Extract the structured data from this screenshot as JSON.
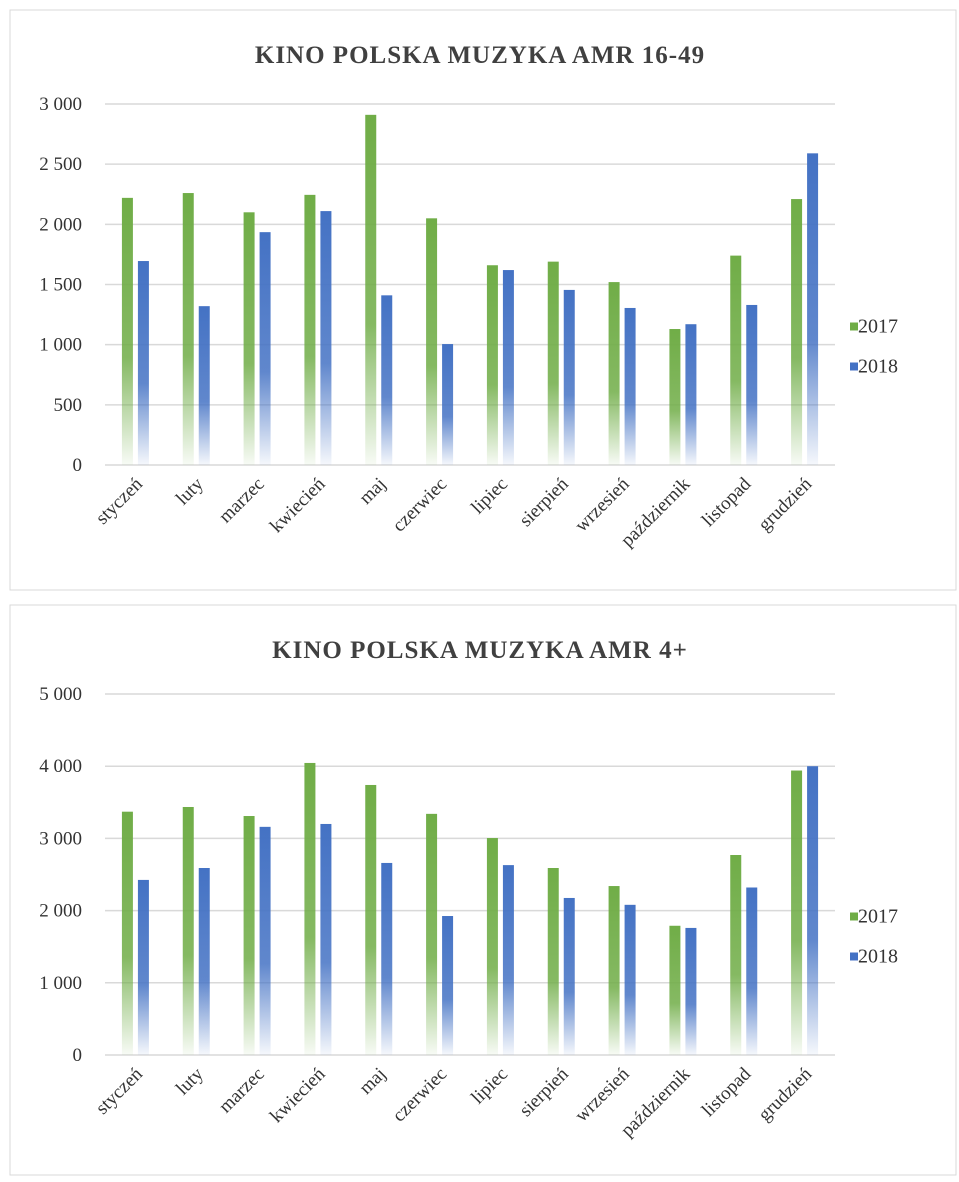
{
  "chart_data": [
    {
      "type": "bar",
      "title": "KINO POLSKA MUZYKA AMR 16-49",
      "categories": [
        "styczeń",
        "luty",
        "marzec",
        "kwiecień",
        "maj",
        "czerwiec",
        "lipiec",
        "sierpień",
        "wrzesień",
        "październik",
        "listopad",
        "grudzień"
      ],
      "series": [
        {
          "name": "2017",
          "color": "#70ad47",
          "values": [
            2220,
            2260,
            2100,
            2245,
            2910,
            2050,
            1660,
            1690,
            1520,
            1130,
            1740,
            2210
          ]
        },
        {
          "name": "2018",
          "color": "#4472c4",
          "values": [
            1695,
            1320,
            1935,
            2110,
            1410,
            1005,
            1620,
            1455,
            1305,
            1170,
            1330,
            2590
          ]
        }
      ],
      "ylim": [
        0,
        3000
      ],
      "yticks": [
        0,
        {
          "value": 500,
          "label": "500"
        },
        {
          "value": 1000,
          "label": "1 000"
        },
        {
          "value": 1500,
          "label": "1 500"
        },
        {
          "value": 2000,
          "label": "2 000"
        },
        {
          "value": 2500,
          "label": "2 500"
        },
        {
          "value": 3000,
          "label": "3 000"
        }
      ],
      "grid": true,
      "legend": "right"
    },
    {
      "type": "bar",
      "title": "KINO POLSKA MUZYKA AMR 4+",
      "categories": [
        "styczeń",
        "luty",
        "marzec",
        "kwiecień",
        "maj",
        "czerwiec",
        "lipiec",
        "sierpień",
        "wrzesień",
        "październik",
        "listopad",
        "grudzień"
      ],
      "series": [
        {
          "name": "2017",
          "color": "#70ad47",
          "values": [
            3370,
            3435,
            3310,
            4045,
            3740,
            3340,
            3005,
            2590,
            2340,
            1790,
            2770,
            3940
          ]
        },
        {
          "name": "2018",
          "color": "#4472c4",
          "values": [
            2425,
            2590,
            3160,
            3200,
            2660,
            1925,
            2630,
            2175,
            2080,
            1760,
            2320,
            4000
          ]
        }
      ],
      "ylim": [
        0,
        5000
      ],
      "yticks": [
        0,
        {
          "value": 1000,
          "label": "1 000"
        },
        {
          "value": 2000,
          "label": "2 000"
        },
        {
          "value": 3000,
          "label": "3 000"
        },
        {
          "value": 4000,
          "label": "4 000"
        },
        {
          "value": 5000,
          "label": "5 000"
        }
      ],
      "grid": true,
      "legend": "right"
    }
  ]
}
